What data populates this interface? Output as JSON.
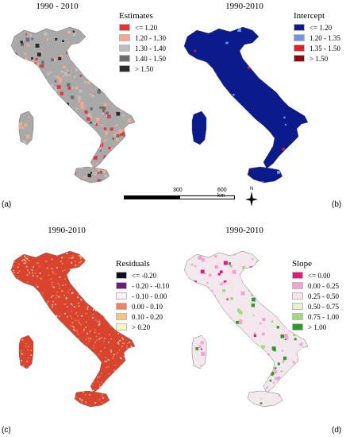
{
  "panels": {
    "a": {
      "title": "1990 - 2010",
      "letter": "(a)",
      "legend_title": "Estimates",
      "land_color": "#a9a9a9",
      "classes": [
        {
          "label": "<= 1.20",
          "color": "#e8313b"
        },
        {
          "label": "1.20  - 1.30",
          "color": "#f4a98c"
        },
        {
          "label": "1.30  - 1.40",
          "color": "#bdbdbd"
        },
        {
          "label": "1.40  - 1.50",
          "color": "#6e6e6e"
        },
        {
          "label": "> 1.50",
          "color": "#2b2b2b"
        }
      ]
    },
    "b": {
      "title": "1990-2010",
      "letter": "(b)",
      "legend_title": "Intercept",
      "land_color": "#0b1b8c",
      "classes": [
        {
          "label": "<= 1.20",
          "color": "#0b1b8c"
        },
        {
          "label": "1.20  - 1.35",
          "color": "#6f93e8"
        },
        {
          "label": "1.35  - 1.50",
          "color": "#e01f26"
        },
        {
          "label": "> 1.50",
          "color": "#8b0a0e"
        }
      ]
    },
    "c": {
      "title": "1990-2010",
      "letter": "(c)",
      "legend_title": "Residuals",
      "land_color": "#d9442f",
      "classes": [
        {
          "label": "<= -0.20",
          "color": "#0d0d1f"
        },
        {
          "label": "- 0.20  - -0.10",
          "color": "#6b1d7a"
        },
        {
          "label": "- 0.10  - 0.00",
          "color": "#f6f1f4"
        },
        {
          "label": "0.00  - 0.10",
          "color": "#f08060"
        },
        {
          "label": "0.10  - 0.20",
          "color": "#f7c37e"
        },
        {
          "label": "> 0.20",
          "color": "#f7f7c3"
        }
      ]
    },
    "d": {
      "title": "1990-2010",
      "letter": "(d)",
      "legend_title": "Slope",
      "land_color": "#f2e8ee",
      "classes": [
        {
          "label": "<= 0.00",
          "color": "#e0197d"
        },
        {
          "label": "0.00  - 0.25",
          "color": "#f4a3cf"
        },
        {
          "label": "0.25  - 0.50",
          "color": "#fbe1ee"
        },
        {
          "label": "0.50  - 0.75",
          "color": "#e4f2d2"
        },
        {
          "label": "0.75  - 1.00",
          "color": "#9edc7d"
        },
        {
          "label": "> 1.00",
          "color": "#2c9b2a"
        }
      ]
    }
  },
  "scale_bar": {
    "labels": [
      "300",
      "600 km"
    ]
  },
  "north_arrow": {
    "letter": "N",
    "icon": "north-arrow-icon"
  }
}
